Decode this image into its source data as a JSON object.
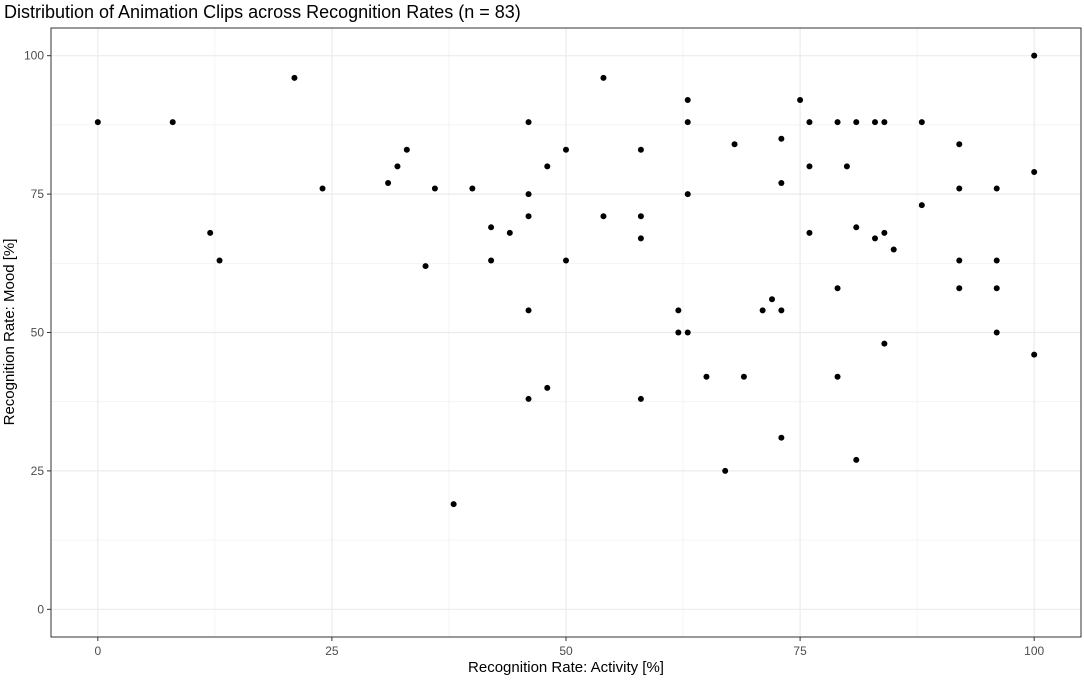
{
  "chart_data": {
    "type": "scatter",
    "title": "Distribution of Animation Clips across Recognition Rates (n = 83)",
    "xlabel": "Recognition Rate: Activity [%]",
    "ylabel": "Recognition Rate: Mood [%]",
    "xlim": [
      -5,
      105
    ],
    "ylim": [
      -5,
      105
    ],
    "x_ticks": [
      0,
      25,
      50,
      75,
      100
    ],
    "y_ticks": [
      0,
      25,
      50,
      75,
      100
    ],
    "x_tick_labels": [
      "0",
      "25",
      "50",
      "75",
      "100"
    ],
    "y_tick_labels": [
      "0",
      "25",
      "50",
      "75",
      "100"
    ],
    "grid": true,
    "theme": "bw",
    "point_color": "#000000",
    "points": [
      {
        "x": 0,
        "y": 88
      },
      {
        "x": 8,
        "y": 88
      },
      {
        "x": 12,
        "y": 68
      },
      {
        "x": 13,
        "y": 63
      },
      {
        "x": 21,
        "y": 96
      },
      {
        "x": 24,
        "y": 76
      },
      {
        "x": 31,
        "y": 77
      },
      {
        "x": 32,
        "y": 80
      },
      {
        "x": 33,
        "y": 83
      },
      {
        "x": 35,
        "y": 62
      },
      {
        "x": 36,
        "y": 76
      },
      {
        "x": 38,
        "y": 19
      },
      {
        "x": 40,
        "y": 76
      },
      {
        "x": 42,
        "y": 69
      },
      {
        "x": 42,
        "y": 63
      },
      {
        "x": 44,
        "y": 68
      },
      {
        "x": 46,
        "y": 88
      },
      {
        "x": 46,
        "y": 75
      },
      {
        "x": 46,
        "y": 71
      },
      {
        "x": 46,
        "y": 54
      },
      {
        "x": 46,
        "y": 38
      },
      {
        "x": 48,
        "y": 80
      },
      {
        "x": 48,
        "y": 40
      },
      {
        "x": 50,
        "y": 83
      },
      {
        "x": 50,
        "y": 63
      },
      {
        "x": 54,
        "y": 96
      },
      {
        "x": 54,
        "y": 71
      },
      {
        "x": 58,
        "y": 83
      },
      {
        "x": 58,
        "y": 71
      },
      {
        "x": 58,
        "y": 67
      },
      {
        "x": 58,
        "y": 38
      },
      {
        "x": 62,
        "y": 54
      },
      {
        "x": 62,
        "y": 50
      },
      {
        "x": 63,
        "y": 92
      },
      {
        "x": 63,
        "y": 88
      },
      {
        "x": 63,
        "y": 75
      },
      {
        "x": 63,
        "y": 50
      },
      {
        "x": 65,
        "y": 42
      },
      {
        "x": 67,
        "y": 25
      },
      {
        "x": 68,
        "y": 84
      },
      {
        "x": 69,
        "y": 42
      },
      {
        "x": 71,
        "y": 54
      },
      {
        "x": 72,
        "y": 56
      },
      {
        "x": 73,
        "y": 85
      },
      {
        "x": 73,
        "y": 77
      },
      {
        "x": 73,
        "y": 54
      },
      {
        "x": 73,
        "y": 31
      },
      {
        "x": 75,
        "y": 92
      },
      {
        "x": 76,
        "y": 88
      },
      {
        "x": 76,
        "y": 80
      },
      {
        "x": 76,
        "y": 68
      },
      {
        "x": 79,
        "y": 88
      },
      {
        "x": 79,
        "y": 58
      },
      {
        "x": 79,
        "y": 42
      },
      {
        "x": 80,
        "y": 80
      },
      {
        "x": 81,
        "y": 88
      },
      {
        "x": 81,
        "y": 69
      },
      {
        "x": 81,
        "y": 27
      },
      {
        "x": 83,
        "y": 88
      },
      {
        "x": 83,
        "y": 67
      },
      {
        "x": 84,
        "y": 88
      },
      {
        "x": 84,
        "y": 68
      },
      {
        "x": 84,
        "y": 48
      },
      {
        "x": 85,
        "y": 65
      },
      {
        "x": 88,
        "y": 88
      },
      {
        "x": 88,
        "y": 73
      },
      {
        "x": 92,
        "y": 84
      },
      {
        "x": 92,
        "y": 76
      },
      {
        "x": 92,
        "y": 63
      },
      {
        "x": 92,
        "y": 58
      },
      {
        "x": 96,
        "y": 76
      },
      {
        "x": 96,
        "y": 63
      },
      {
        "x": 96,
        "y": 58
      },
      {
        "x": 96,
        "y": 50
      },
      {
        "x": 100,
        "y": 100
      },
      {
        "x": 100,
        "y": 79
      },
      {
        "x": 100,
        "y": 46
      }
    ]
  }
}
